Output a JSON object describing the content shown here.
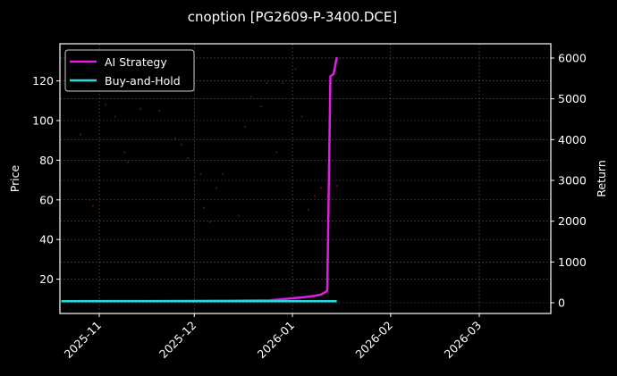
{
  "chart_data": {
    "type": "line",
    "title": "cnoption [PG2609-P-3400.DCE]",
    "xlabel": "",
    "ylabel": "Price",
    "ylabel_right": "Return",
    "x_ticks": [
      "2025-11",
      "2025-12",
      "2026-01",
      "2026-02",
      "2026-03"
    ],
    "y_ticks_left": [
      20,
      40,
      60,
      80,
      100,
      120
    ],
    "y_ticks_right": [
      0,
      1000,
      2000,
      3000,
      4000,
      5000,
      6000
    ],
    "ylim_left": [
      3,
      138
    ],
    "ylim_right": [
      -300,
      6300
    ],
    "grid": true,
    "legend_position": "upper left",
    "series": [
      {
        "name": "AI Strategy",
        "axis": "right",
        "color": "#e020e0",
        "x": [
          "2025-10-20",
          "2025-11-15",
          "2025-12-10",
          "2025-12-25",
          "2026-01-01",
          "2026-01-05",
          "2026-01-08",
          "2026-01-10",
          "2026-01-12",
          "2026-01-13",
          "2026-01-14",
          "2026-01-15"
        ],
        "values": [
          40,
          42,
          48,
          60,
          110,
          140,
          170,
          200,
          290,
          5550,
          5610,
          6020
        ]
      },
      {
        "name": "Buy-and-Hold",
        "axis": "right",
        "color": "#22dde0",
        "x": [
          "2025-10-20",
          "2026-01-15"
        ],
        "values": [
          40,
          40
        ]
      },
      {
        "name": "Price",
        "axis": "left",
        "type": "scatter",
        "color": "#5a0a0a",
        "x": [
          "2025-10-26",
          "2025-10-29",
          "2025-10-30",
          "2025-11-03",
          "2025-11-06",
          "2025-11-09",
          "2025-11-10",
          "2025-11-14",
          "2025-11-20",
          "2025-11-25",
          "2025-11-27",
          "2025-11-29",
          "2025-12-03",
          "2025-12-04",
          "2025-12-06",
          "2025-12-08",
          "2025-12-10",
          "2025-12-15",
          "2025-12-17",
          "2025-12-19",
          "2025-12-22",
          "2025-12-24",
          "2025-12-27",
          "2025-12-29",
          "2026-01-02",
          "2026-01-04",
          "2026-01-06",
          "2026-01-08",
          "2026-01-10",
          "2026-01-15"
        ],
        "values": [
          93,
          60,
          57,
          108,
          102,
          84,
          79,
          106,
          105,
          91,
          88,
          81,
          73,
          56,
          49,
          66,
          73,
          52,
          97,
          112,
          107,
          119,
          84,
          119,
          126,
          102,
          55,
          62,
          66,
          67
        ]
      }
    ]
  },
  "legend": {
    "items": [
      {
        "label": "AI Strategy",
        "color": "#e020e0"
      },
      {
        "label": "Buy-and-Hold",
        "color": "#22dde0"
      }
    ]
  },
  "colors": {
    "background": "#000000",
    "axes": "#ffffff",
    "grid": "#555555",
    "ai_strategy": "#e020e0",
    "buy_and_hold": "#22dde0",
    "price_dots": "#5a0a0a"
  }
}
